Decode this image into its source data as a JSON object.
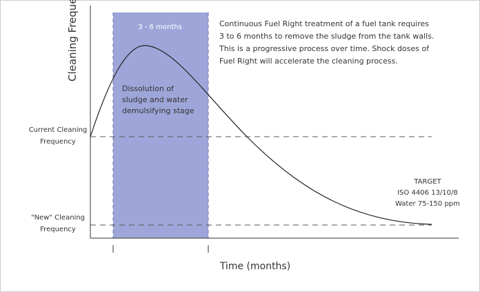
{
  "y_axis_label": "Cleaning Frequency",
  "x_axis_label": "Time (months)",
  "band_label": "3 - 6 months",
  "stage_label": [
    "Dissolution of",
    "sludge and water",
    "demulsifying stage"
  ],
  "description": [
    "Continuous Fuel Right treatment of a fuel tank requires",
    "3 to 6 months to remove the sludge from the tank walls.",
    "This is a progressive process over time.  Shock doses of",
    "Fuel Right will accelerate the cleaning process."
  ],
  "current_level": [
    "Current Cleaning",
    "Frequency"
  ],
  "new_level": [
    "\"New\" Cleaning",
    "Frequency"
  ],
  "target": [
    "TARGET",
    "ISO 4406 13/10/8",
    "Water 75-150 ppm"
  ]
}
